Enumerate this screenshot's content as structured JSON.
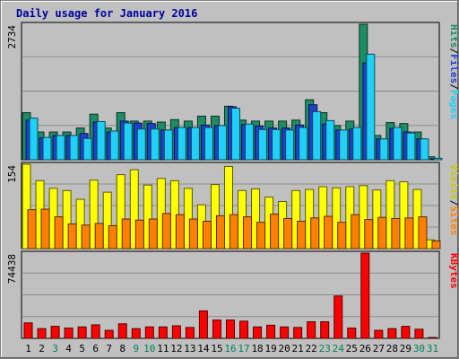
{
  "chart_data": [
    {
      "type": "bar",
      "title": "Daily usage for January 2016",
      "right_label": [
        "Pages",
        "Files",
        "Hits"
      ],
      "y_max_label": "2734",
      "ylim": [
        0,
        2734
      ],
      "categories": [
        "1",
        "2",
        "3",
        "4",
        "5",
        "6",
        "7",
        "8",
        "9",
        "10",
        "11",
        "12",
        "13",
        "14",
        "15",
        "16",
        "17",
        "18",
        "19",
        "20",
        "21",
        "22",
        "23",
        "24",
        "25",
        "26",
        "27",
        "28",
        "29",
        "30",
        "31"
      ],
      "weekend_days": [
        "3",
        "9",
        "10",
        "16",
        "17",
        "23",
        "24",
        "30",
        "31"
      ],
      "series": [
        {
          "name": "Hits",
          "color": "#1e8c64",
          "values": [
            950,
            560,
            560,
            560,
            640,
            920,
            640,
            950,
            780,
            780,
            760,
            810,
            780,
            880,
            880,
            1080,
            800,
            780,
            780,
            780,
            800,
            1210,
            950,
            690,
            780,
            2734,
            490,
            750,
            730,
            560,
            60
          ]
        },
        {
          "name": "Files",
          "color": "#2040d0",
          "values": [
            800,
            440,
            490,
            490,
            530,
            760,
            560,
            780,
            740,
            730,
            600,
            650,
            650,
            700,
            690,
            1070,
            710,
            680,
            640,
            640,
            700,
            1110,
            720,
            600,
            620,
            1950,
            420,
            630,
            560,
            420,
            20
          ]
        },
        {
          "name": "Pages",
          "color": "#20d0f8",
          "values": [
            840,
            450,
            490,
            490,
            430,
            770,
            580,
            740,
            620,
            620,
            600,
            650,
            650,
            650,
            690,
            1040,
            720,
            610,
            610,
            600,
            650,
            970,
            790,
            600,
            650,
            2130,
            420,
            650,
            540,
            420,
            30
          ]
        }
      ]
    },
    {
      "type": "bar",
      "right_label": [
        "Sites",
        "Visits"
      ],
      "y_max_label": "154",
      "ylim": [
        0,
        154
      ],
      "categories": [
        "1",
        "2",
        "3",
        "4",
        "5",
        "6",
        "7",
        "8",
        "9",
        "10",
        "11",
        "12",
        "13",
        "14",
        "15",
        "16",
        "17",
        "18",
        "19",
        "20",
        "21",
        "22",
        "23",
        "24",
        "25",
        "26",
        "27",
        "28",
        "29",
        "30",
        "31"
      ],
      "series": [
        {
          "name": "Visits",
          "color": "#ffff00",
          "values": [
            154,
            124,
            110,
            106,
            90,
            125,
            103,
            135,
            144,
            116,
            128,
            124,
            110,
            80,
            117,
            150,
            106,
            109,
            94,
            86,
            106,
            108,
            113,
            111,
            113,
            115,
            107,
            124,
            122,
            108,
            16
          ]
        },
        {
          "name": "Sites",
          "color": "#ff8000",
          "values": [
            71,
            72,
            58,
            45,
            43,
            46,
            42,
            54,
            52,
            54,
            64,
            62,
            54,
            50,
            60,
            62,
            58,
            48,
            63,
            55,
            50,
            56,
            59,
            48,
            62,
            53,
            57,
            55,
            56,
            58,
            14
          ]
        }
      ]
    },
    {
      "type": "bar",
      "right_label": [
        "KBytes"
      ],
      "y_max_label": "74438",
      "ylim": [
        0,
        74438
      ],
      "categories": [
        "1",
        "2",
        "3",
        "4",
        "5",
        "6",
        "7",
        "8",
        "9",
        "10",
        "11",
        "12",
        "13",
        "14",
        "15",
        "16",
        "17",
        "18",
        "19",
        "20",
        "21",
        "22",
        "23",
        "24",
        "25",
        "26",
        "27",
        "28",
        "29",
        "30",
        "31"
      ],
      "series": [
        {
          "name": "KBytes",
          "color": "#ff0000",
          "values": [
            13500,
            8500,
            10500,
            9000,
            10000,
            11800,
            7000,
            12700,
            8500,
            10000,
            10000,
            11000,
            9500,
            24000,
            16000,
            16000,
            15000,
            10000,
            11500,
            10000,
            9500,
            14500,
            14500,
            37000,
            9000,
            74438,
            7000,
            8500,
            10500,
            8000,
            500
          ]
        }
      ]
    }
  ]
}
